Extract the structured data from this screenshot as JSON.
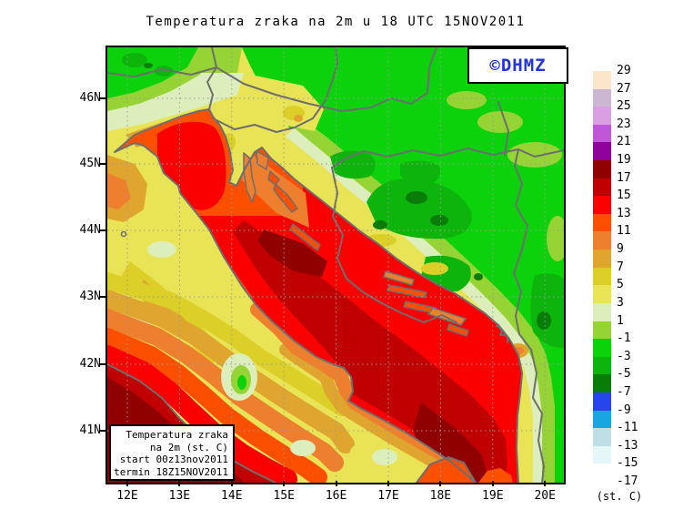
{
  "title": "Temperatura zraka na 2m u 18 UTC 15NOV2011",
  "watermark": {
    "text": "©DHMZ",
    "color": "#2233dd"
  },
  "axes": {
    "lat_ticks": [
      "46N",
      "45N",
      "44N",
      "43N",
      "42N",
      "41N"
    ],
    "lon_ticks": [
      "12E",
      "13E",
      "14E",
      "15E",
      "16E",
      "17E",
      "18E",
      "19E",
      "20E"
    ]
  },
  "legend": {
    "unit": "(st. C)",
    "labels": [
      "29",
      "27",
      "25",
      "23",
      "21",
      "19",
      "17",
      "15",
      "13",
      "11",
      "9",
      "7",
      "5",
      "3",
      "1",
      "-1",
      "-3",
      "-5",
      "-7",
      "-9",
      "-11",
      "-13",
      "-15",
      "-17"
    ],
    "colors": [
      "#fbe6cb",
      "#cbb7d2",
      "#d89fe2",
      "#c156d8",
      "#90009c",
      "#900000",
      "#c00000",
      "#fb0000",
      "#fc5000",
      "#ee7f2e",
      "#dfa52e",
      "#dccf27",
      "#e9e456",
      "#dceebc",
      "#96d335",
      "#0bd20b",
      "#0cb40c",
      "#087d08",
      "#2545ea",
      "#18a5e2",
      "#c0dee6",
      "#e6f7f9",
      "#ffffff"
    ]
  },
  "info_box": {
    "lines": [
      "Temperatura zraka",
      "na 2m (st. C)",
      "start 00z13nov2011",
      "termin 18Z15NOV2011"
    ]
  },
  "palette": {
    "cream": "#fbe6cb",
    "lavender": "#cbb7d2",
    "orchidLight": "#d89fe2",
    "orchid": "#c156d8",
    "purple": "#90009c",
    "maroon": "#900000",
    "seaRed": "#c00000",
    "brightRed": "#fb0000",
    "orangeRed": "#fc5000",
    "orange": "#ee7f2e",
    "goldenrod": "#dfa52e",
    "darkYellow": "#dccf27",
    "yellow": "#e9e456",
    "paleGreen": "#dceebc",
    "yellowGreen": "#96d335",
    "green": "#0bd20b",
    "midGreen": "#0cb40c",
    "darkGreen": "#087d08",
    "blue": "#2545ea",
    "skyBlue": "#18a5e2",
    "paleBlue": "#c0dee6",
    "paleCyan": "#e6f7f9",
    "coast": "#6e6e6e",
    "grid": "#9a9a9a",
    "dhmzBlue": "#2233dd"
  }
}
